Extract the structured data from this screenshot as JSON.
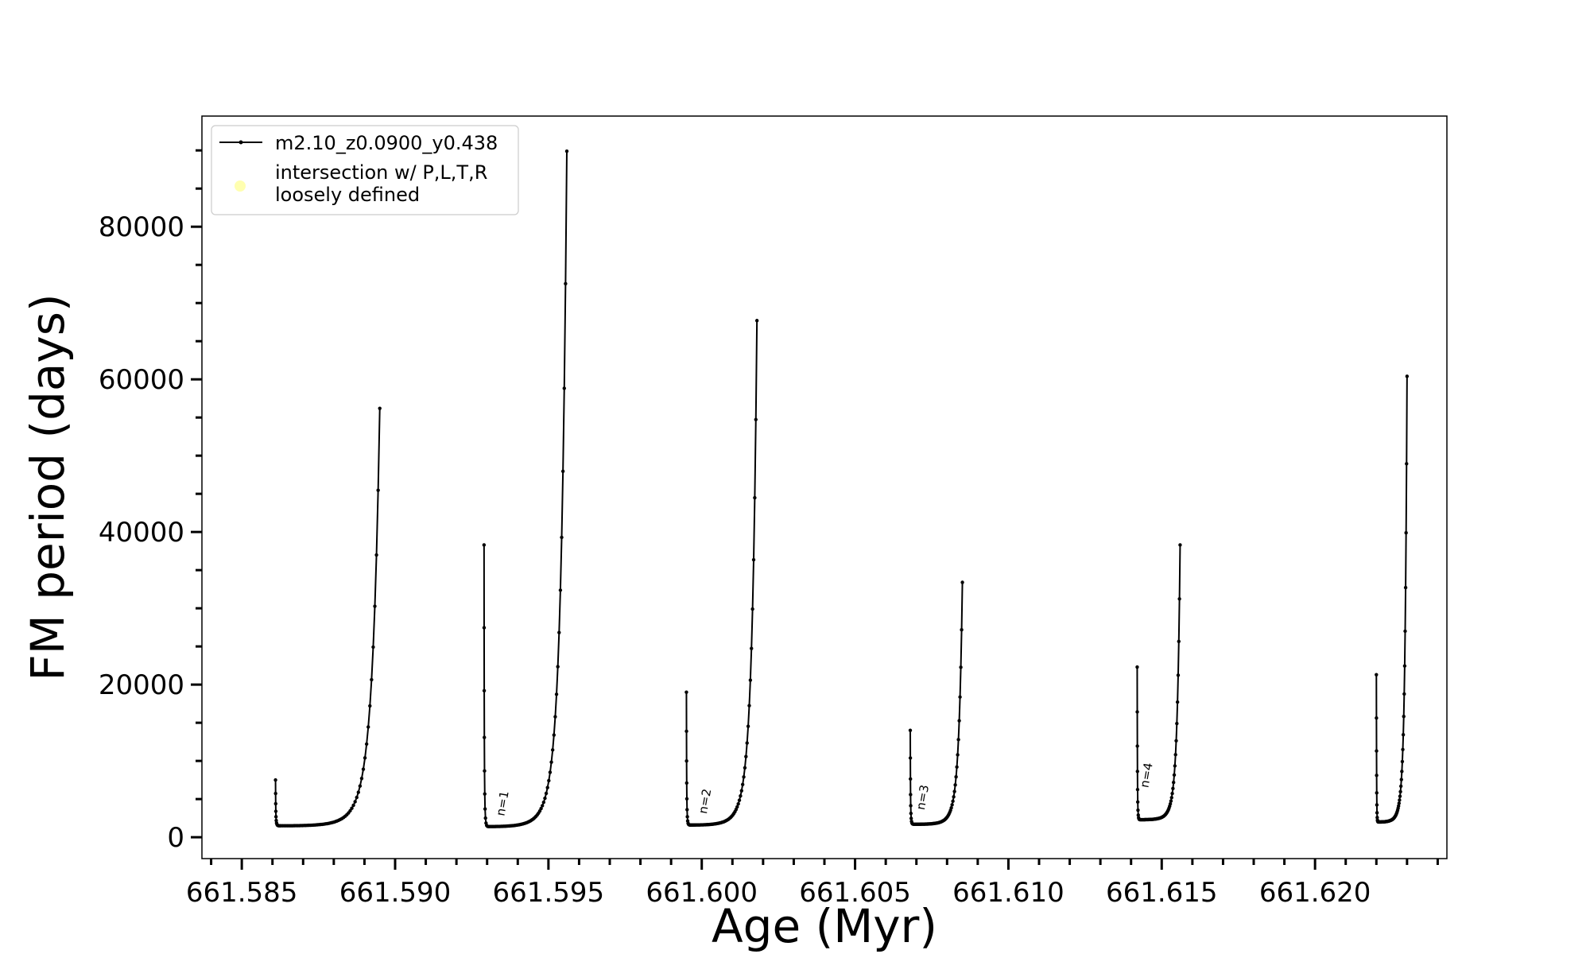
{
  "chart_data": {
    "type": "line",
    "title": "",
    "xlabel": "Age (Myr)",
    "ylabel": "FM period (days)",
    "xlim": [
      661.5837,
      661.6243
    ],
    "ylim": [
      -2800,
      94500
    ],
    "xticks": [
      661.585,
      661.59,
      661.595,
      661.6,
      661.605,
      661.61,
      661.615,
      661.62
    ],
    "xtick_labels": [
      "661.585",
      "661.590",
      "661.595",
      "661.600",
      "661.605",
      "661.610",
      "661.615",
      "661.620"
    ],
    "yticks": [
      0,
      20000,
      40000,
      60000,
      80000
    ],
    "ytick_labels": [
      "0",
      "20000",
      "40000",
      "60000",
      "80000"
    ],
    "x_minor_step": 0.001,
    "y_minor_step": 5000,
    "grid": false,
    "legend_position": "upper left",
    "legend": [
      {
        "label": "m2.10_z0.0900_y0.438",
        "marker": "line-with-dots",
        "color": "#000000"
      },
      {
        "label": "intersection w/ P,L,T,R\nloosely defined",
        "marker": "circle",
        "color": "#ffffb0"
      }
    ],
    "annotations": [
      {
        "text": "n=1",
        "x": 661.5933,
        "y": 2300
      },
      {
        "text": "n=2",
        "x": 661.5999,
        "y": 2600
      },
      {
        "text": "n=3",
        "x": 661.607,
        "y": 3100
      },
      {
        "text": "n=4",
        "x": 661.6143,
        "y": 6000
      }
    ],
    "series": [
      {
        "name": "m2.10_z0.0900_y0.438",
        "color": "#000000",
        "cycles": [
          {
            "start_x": 661.5861,
            "spike_y": 7500,
            "min_y": 1500,
            "drop_dx": 0.00018,
            "end_x": 661.5895,
            "end_y": 56200
          },
          {
            "start_x": 661.5929,
            "spike_y": 38300,
            "min_y": 1400,
            "drop_dx": 0.00018,
            "end_x": 661.5956,
            "end_y": 89900
          },
          {
            "start_x": 661.5995,
            "spike_y": 19000,
            "min_y": 1600,
            "drop_dx": 0.00015,
            "end_x": 661.6018,
            "end_y": 67700
          },
          {
            "start_x": 661.6068,
            "spike_y": 14000,
            "min_y": 1700,
            "drop_dx": 0.00015,
            "end_x": 661.6085,
            "end_y": 33400
          },
          {
            "start_x": 661.6142,
            "spike_y": 22300,
            "min_y": 2300,
            "drop_dx": 0.00012,
            "end_x": 661.6156,
            "end_y": 38300
          },
          {
            "start_x": 661.622,
            "spike_y": 21300,
            "min_y": 2000,
            "drop_dx": 8e-05,
            "end_x": 661.623,
            "end_y": 60400
          }
        ]
      }
    ]
  }
}
